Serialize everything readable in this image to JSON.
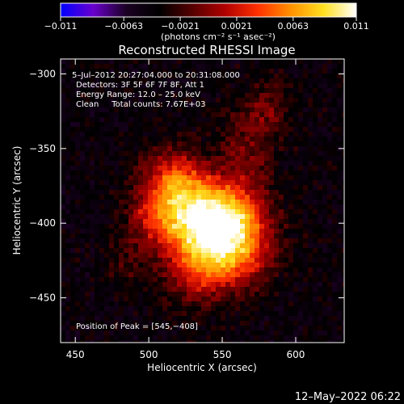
{
  "chart_data": {
    "type": "heatmap",
    "title": "Reconstructed RHESSI Image",
    "xlabel": "Heliocentric X (arcsec)",
    "ylabel": "Heliocentric Y (arcsec)",
    "xlim": [
      440,
      633
    ],
    "ylim": [
      -480,
      -290
    ],
    "x_ticks": [
      450,
      500,
      550,
      600
    ],
    "y_ticks": [
      -300,
      -350,
      -400,
      -450
    ],
    "x_tick_labels": [
      "450",
      "500",
      "550",
      "600"
    ],
    "y_tick_labels": [
      "−300",
      "−350",
      "−400",
      "−450"
    ],
    "colorbar": {
      "min": -0.011,
      "max": 0.011,
      "ticks": [
        -0.011,
        -0.0063,
        -0.0021,
        0.0021,
        0.0063,
        0.011
      ],
      "tick_labels": [
        "−0.011",
        "−0.0063",
        "−0.0021",
        "0.0021",
        "0.0063",
        "0.011"
      ],
      "unit_label": "(photons cm⁻² s⁻¹ asec⁻²)",
      "stops": [
        "#0000ff",
        "#6a00cc",
        "#1a0022",
        "#000000",
        "#550000",
        "#b00000",
        "#ff3000",
        "#ff9000",
        "#ffe020",
        "#ffffff"
      ]
    },
    "annotations": [
      "5–Jul–2012 20:27:04.000 to 20:31:08.000",
      "Detectors: 3F 5F 6F 7F 8F, Att 1",
      "Energy Range: 12.0 – 25.0 keV",
      "Clean     Total counts: 7.67E+03"
    ],
    "peak_label": "Position of Peak = [545,−408]",
    "peak": [
      545,
      -408
    ],
    "grid": false
  },
  "footer": {
    "date": "12–May–2022 06:22"
  }
}
